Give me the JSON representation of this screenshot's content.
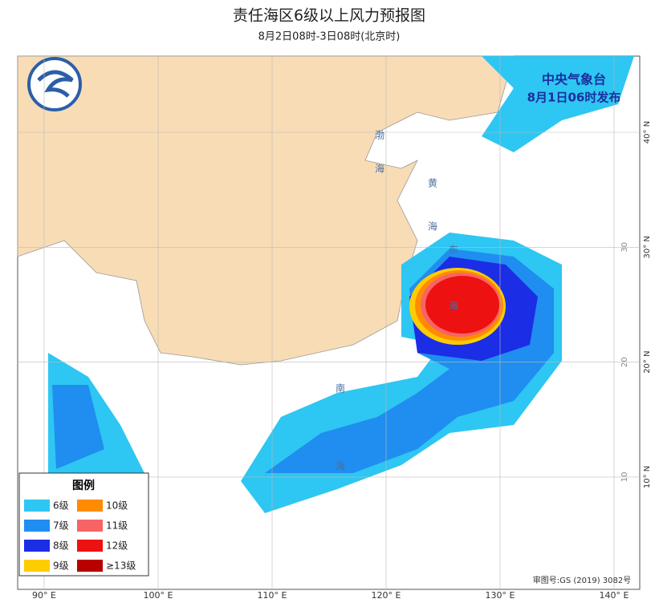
{
  "header": {
    "title": "责任海区6级以上风力预报图",
    "subtitle": "8月2日08时-3日08时(北京时)"
  },
  "issuer": {
    "name": "中央气象台",
    "time": "8月1日06时发布"
  },
  "seas": [
    "渤海",
    "黄海",
    "东海",
    "南海"
  ],
  "map": {
    "lon_ticks": [
      {
        "value": 90,
        "label": "90° E"
      },
      {
        "value": 100,
        "label": "100° E"
      },
      {
        "value": 110,
        "label": "110° E"
      },
      {
        "value": 120,
        "label": "120° E"
      },
      {
        "value": 130,
        "label": "130° E"
      },
      {
        "value": 140,
        "label": "140° E"
      }
    ],
    "lat_ticks": [
      {
        "value": 40,
        "label": "40° N"
      },
      {
        "value": 30,
        "label": "30° N"
      },
      {
        "value": 20,
        "label": "20° N"
      },
      {
        "value": 10,
        "label": "10° N"
      }
    ],
    "inner_lat_labels": [
      30,
      20,
      10
    ]
  },
  "legend": {
    "title": "图例",
    "items": [
      {
        "label": "6级",
        "color": "#2ec6f2"
      },
      {
        "label": "7级",
        "color": "#1f8ef0"
      },
      {
        "label": "8级",
        "color": "#1c2de6"
      },
      {
        "label": "9级",
        "color": "#ffcc00"
      },
      {
        "label": "10级",
        "color": "#ff8c00"
      },
      {
        "label": "11级",
        "color": "#f76464"
      },
      {
        "label": "12级",
        "color": "#ee1111"
      },
      {
        "label": "≥13级",
        "color": "#b80000"
      }
    ]
  },
  "approval": "审图号:GS (2019) 3082号"
}
